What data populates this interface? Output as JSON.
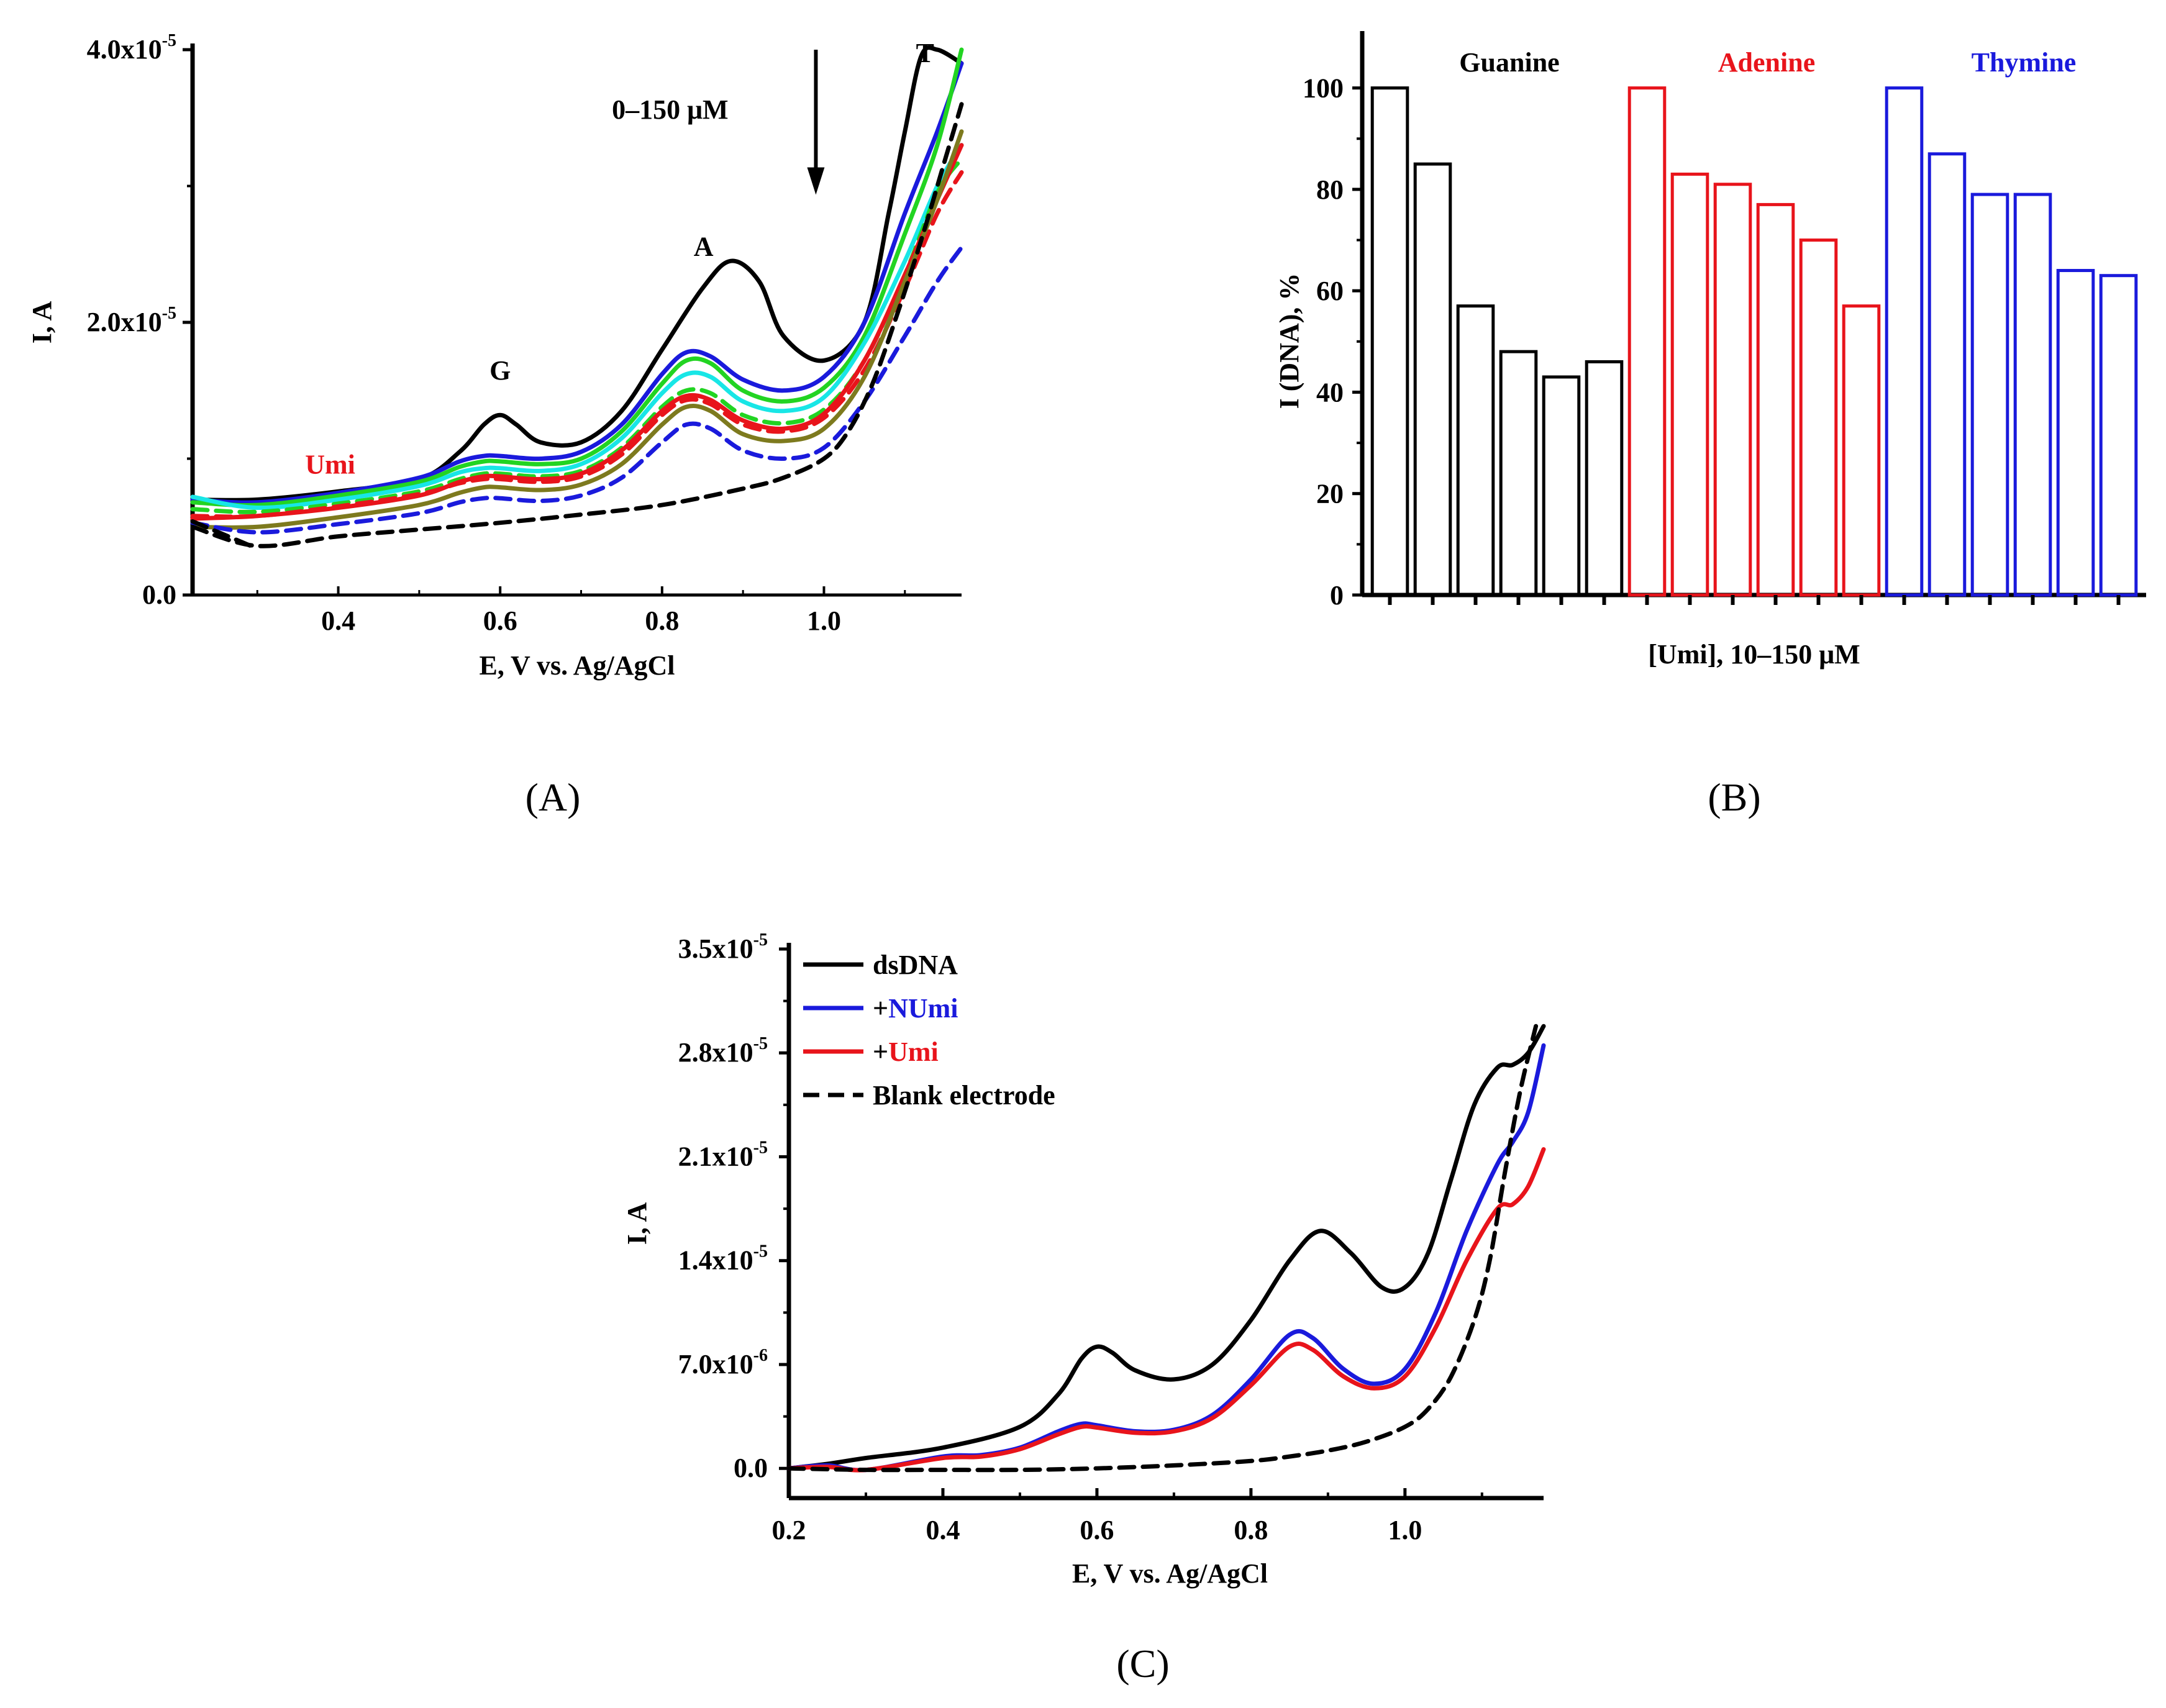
{
  "chart_data": [
    {
      "panel": "A",
      "type": "line",
      "panel_label": "(A)",
      "xlabel": "E, V vs. Ag/AgCl",
      "ylabel": "I, A",
      "xlim": [
        0.22,
        1.17
      ],
      "ylim": [
        0,
        4e-05
      ],
      "x_ticks": [
        0.4,
        0.6,
        0.8,
        1.0
      ],
      "x_tick_labels": [
        "0.4",
        "0.6",
        "0.8",
        "1.0"
      ],
      "y_ticks": [
        0,
        2e-05,
        4e-05
      ],
      "y_tick_labels": [
        {
          "base": "0.0",
          "exp": ""
        },
        {
          "base": "2.0x10",
          "exp": "-5"
        },
        {
          "base": "4.0x10",
          "exp": "-5"
        }
      ],
      "annotations": {
        "G": {
          "text": "G",
          "x": 0.6,
          "y": 1.5e-05
        },
        "A": {
          "text": "A",
          "x": 0.885,
          "y": 2.68e-05
        },
        "T": {
          "text": "T",
          "x": 1.125,
          "y": 4e-05
        },
        "umi": {
          "text": "Umi",
          "x": 0.39,
          "y": 9.6e-06,
          "color": "#e8141b"
        },
        "conc": {
          "text": "0–150 μM",
          "x": 0.81,
          "y": 3.55e-05
        },
        "arrow": {
          "x": 0.99,
          "y_from": 4e-05,
          "y_to": 3e-05
        }
      },
      "series": [
        {
          "name": "dsDNA",
          "color": "#000000",
          "dash": false,
          "x": [
            0.22,
            0.3,
            0.4,
            0.5,
            0.55,
            0.58,
            0.6,
            0.62,
            0.65,
            0.7,
            0.75,
            0.8,
            0.85,
            0.885,
            0.92,
            0.95,
            1.0,
            1.05,
            1.08,
            1.1,
            1.12,
            1.14,
            1.17
          ],
          "y": [
            7e-06,
            7e-06,
            7.6e-06,
            8.5e-06,
            1.05e-05,
            1.25e-05,
            1.32e-05,
            1.25e-05,
            1.12e-05,
            1.12e-05,
            1.35e-05,
            1.8e-05,
            2.25e-05,
            2.45e-05,
            2.3e-05,
            1.9e-05,
            1.72e-05,
            2e-05,
            2.8e-05,
            3.4e-05,
            3.95e-05,
            4e-05,
            3.9e-05
          ]
        },
        {
          "name": "blue",
          "color": "#1a1adc",
          "dash": false,
          "x": [
            0.22,
            0.3,
            0.4,
            0.5,
            0.55,
            0.58,
            0.6,
            0.65,
            0.7,
            0.75,
            0.8,
            0.83,
            0.86,
            0.9,
            0.95,
            1.0,
            1.05,
            1.1,
            1.14,
            1.17
          ],
          "y": [
            7e-06,
            6.8e-06,
            7.5e-06,
            8.6e-06,
            9.8e-06,
            1.02e-05,
            1.02e-05,
            1e-05,
            1.05e-05,
            1.25e-05,
            1.62e-05,
            1.78e-05,
            1.75e-05,
            1.58e-05,
            1.5e-05,
            1.6e-05,
            2e-05,
            2.8e-05,
            3.4e-05,
            3.9e-05
          ]
        },
        {
          "name": "green",
          "color": "#22d422",
          "dash": false,
          "x": [
            0.22,
            0.3,
            0.4,
            0.5,
            0.55,
            0.58,
            0.6,
            0.65,
            0.7,
            0.75,
            0.8,
            0.83,
            0.86,
            0.9,
            0.95,
            1.0,
            1.05,
            1.1,
            1.14,
            1.17
          ],
          "y": [
            6.8e-06,
            6.6e-06,
            7.3e-06,
            8.3e-06,
            9.4e-06,
            9.8e-06,
            9.8e-06,
            9.6e-06,
            1e-05,
            1.2e-05,
            1.55e-05,
            1.72e-05,
            1.7e-05,
            1.5e-05,
            1.42e-05,
            1.52e-05,
            1.9e-05,
            2.65e-05,
            3.3e-05,
            4e-05
          ]
        },
        {
          "name": "cyan",
          "color": "#18e6e6",
          "dash": false,
          "x": [
            0.22,
            0.3,
            0.4,
            0.5,
            0.55,
            0.58,
            0.6,
            0.65,
            0.7,
            0.75,
            0.8,
            0.83,
            0.86,
            0.9,
            0.95,
            1.0,
            1.05,
            1.1,
            1.14,
            1.17
          ],
          "y": [
            7.2e-06,
            6.4e-06,
            7e-06,
            8e-06,
            9e-06,
            9.3e-06,
            9.3e-06,
            9.1e-06,
            9.6e-06,
            1.15e-05,
            1.48e-05,
            1.62e-05,
            1.6e-05,
            1.42e-05,
            1.35e-05,
            1.45e-05,
            1.85e-05,
            2.45e-05,
            3e-05,
            3.3e-05
          ]
        },
        {
          "name": "green-dashed",
          "color": "#22d422",
          "dash": true,
          "x": [
            0.22,
            0.3,
            0.4,
            0.5,
            0.55,
            0.58,
            0.6,
            0.65,
            0.7,
            0.75,
            0.8,
            0.83,
            0.86,
            0.9,
            0.95,
            1.0,
            1.05,
            1.1,
            1.14,
            1.17
          ],
          "y": [
            6.3e-06,
            6.1e-06,
            6.7e-06,
            7.6e-06,
            8.5e-06,
            8.9e-06,
            8.9e-06,
            8.7e-06,
            9.1e-06,
            1.08e-05,
            1.38e-05,
            1.5e-05,
            1.48e-05,
            1.32e-05,
            1.26e-05,
            1.36e-05,
            1.72e-05,
            2.35e-05,
            2.95e-05,
            3.2e-05
          ]
        },
        {
          "name": "red-dashed",
          "color": "#e8141b",
          "dash": true,
          "x": [
            0.22,
            0.3,
            0.4,
            0.5,
            0.55,
            0.58,
            0.6,
            0.65,
            0.7,
            0.75,
            0.8,
            0.83,
            0.86,
            0.9,
            0.95,
            1.0,
            1.05,
            1.1,
            1.14,
            1.17
          ],
          "y": [
            5.8e-06,
            5.8e-06,
            6.5e-06,
            7.4e-06,
            8.2e-06,
            8.5e-06,
            8.5e-06,
            8.3e-06,
            8.7e-06,
            1.03e-05,
            1.32e-05,
            1.43e-05,
            1.4e-05,
            1.25e-05,
            1.2e-05,
            1.3e-05,
            1.65e-05,
            2.25e-05,
            2.8e-05,
            3.1e-05
          ]
        },
        {
          "name": "red",
          "color": "#e8141b",
          "dash": false,
          "x": [
            0.22,
            0.3,
            0.4,
            0.5,
            0.55,
            0.58,
            0.6,
            0.65,
            0.7,
            0.75,
            0.8,
            0.83,
            0.86,
            0.9,
            0.95,
            1.0,
            1.05,
            1.1,
            1.14,
            1.17
          ],
          "y": [
            5.6e-06,
            5.8e-06,
            6.4e-06,
            7.3e-06,
            8.3e-06,
            8.7e-06,
            8.7e-06,
            8.5e-06,
            8.9e-06,
            1.06e-05,
            1.35e-05,
            1.46e-05,
            1.43e-05,
            1.28e-05,
            1.22e-05,
            1.33e-05,
            1.72e-05,
            2.35e-05,
            2.9e-05,
            3.3e-05
          ]
        },
        {
          "name": "olive",
          "color": "#7d7a1e",
          "dash": false,
          "x": [
            0.22,
            0.3,
            0.4,
            0.5,
            0.55,
            0.58,
            0.6,
            0.65,
            0.7,
            0.75,
            0.8,
            0.83,
            0.86,
            0.9,
            0.95,
            1.0,
            1.05,
            1.1,
            1.14,
            1.17
          ],
          "y": [
            5e-06,
            5e-06,
            5.7e-06,
            6.6e-06,
            7.5e-06,
            7.9e-06,
            7.9e-06,
            7.7e-06,
            8.1e-06,
            9.6e-06,
            1.25e-05,
            1.38e-05,
            1.35e-05,
            1.18e-05,
            1.13e-05,
            1.22e-05,
            1.6e-05,
            2.3e-05,
            2.9e-05,
            3.4e-05
          ]
        },
        {
          "name": "blue-dashed",
          "color": "#1a1adc",
          "dash": true,
          "x": [
            0.22,
            0.3,
            0.4,
            0.5,
            0.55,
            0.58,
            0.6,
            0.65,
            0.7,
            0.75,
            0.8,
            0.83,
            0.86,
            0.9,
            0.95,
            1.0,
            1.05,
            1.1,
            1.14,
            1.17
          ],
          "y": [
            5.3e-06,
            4.6e-06,
            5.2e-06,
            6e-06,
            6.8e-06,
            7.1e-06,
            7.1e-06,
            6.9e-06,
            7.3e-06,
            8.6e-06,
            1.12e-05,
            1.25e-05,
            1.22e-05,
            1.06e-05,
            1e-05,
            1.08e-05,
            1.42e-05,
            1.9e-05,
            2.3e-05,
            2.55e-05
          ]
        },
        {
          "name": "blank",
          "color": "#000000",
          "dash": true,
          "x": [
            0.22,
            0.3,
            0.4,
            0.5,
            0.6,
            0.7,
            0.8,
            0.9,
            0.95,
            1.0,
            1.03,
            1.06,
            1.09,
            1.12,
            1.15,
            1.17
          ],
          "y": [
            5e-06,
            3.6e-06,
            4.3e-06,
            4.8e-06,
            5.3e-06,
            5.9e-06,
            6.6e-06,
            7.8e-06,
            8.6e-06,
            1e-05,
            1.2e-05,
            1.55e-05,
            2.05e-05,
            2.6e-05,
            3.2e-05,
            3.6e-05
          ]
        },
        {
          "name": "blank-short",
          "color": "#000000",
          "dash": true,
          "x": [
            0.22,
            0.26,
            0.3
          ],
          "y": [
            5.4e-06,
            4.4e-06,
            3.4e-06
          ]
        }
      ]
    },
    {
      "panel": "B",
      "type": "bar",
      "panel_label": "(B)",
      "xlabel": "[Umi],  10–150 μM",
      "ylabel": "I (DNA), %",
      "ylim": [
        0,
        110
      ],
      "y_ticks": [
        0,
        20,
        40,
        60,
        80,
        100
      ],
      "y_tick_labels": [
        "0",
        "20",
        "40",
        "60",
        "80",
        "100"
      ],
      "groups": [
        {
          "name": "Guanine",
          "color": "#000000",
          "values": [
            100,
            85,
            57,
            48,
            43,
            46
          ]
        },
        {
          "name": "Adenine",
          "color": "#e8141b",
          "values": [
            100,
            83,
            81,
            77,
            70,
            57
          ]
        },
        {
          "name": "Thymine",
          "color": "#1a1adc",
          "values": [
            100,
            87,
            79,
            79,
            64,
            63
          ]
        }
      ]
    },
    {
      "panel": "C",
      "type": "line",
      "panel_label": "(C)",
      "xlabel": "E, V vs. Ag/AgCl",
      "ylabel": "I, A",
      "xlim": [
        0.2,
        1.18
      ],
      "ylim": [
        -2e-06,
        3.5e-05
      ],
      "x_ticks": [
        0.2,
        0.4,
        0.6,
        0.8,
        1.0
      ],
      "x_tick_labels": [
        "0.2",
        "0.4",
        "0.6",
        "0.8",
        "1.0"
      ],
      "y_ticks": [
        0,
        7e-06,
        1.4e-05,
        2.1e-05,
        2.8e-05,
        3.5e-05
      ],
      "y_tick_labels": [
        {
          "base": "0.0",
          "exp": ""
        },
        {
          "base": "7.0x10",
          "exp": "-6"
        },
        {
          "base": "1.4x10",
          "exp": "-5"
        },
        {
          "base": "2.1x10",
          "exp": "-5"
        },
        {
          "base": "2.8x10",
          "exp": "-5"
        },
        {
          "base": "3.5x10",
          "exp": "-5"
        }
      ],
      "legend": [
        {
          "prefix": "",
          "text": "dsDNA",
          "text_color": "#000000",
          "line_color": "#000000",
          "dash": false
        },
        {
          "prefix": "+",
          "text": "NUmi",
          "text_color": "#1a1adc",
          "line_color": "#1a1adc",
          "dash": false
        },
        {
          "prefix": "+",
          "text": "Umi",
          "text_color": "#e8141b",
          "line_color": "#e8141b",
          "dash": false
        },
        {
          "prefix": "",
          "text": "Blank electrode",
          "text_color": "#000000",
          "line_color": "#000000",
          "dash": true
        }
      ],
      "series": [
        {
          "name": "dsDNA",
          "color": "#000000",
          "dash": false,
          "x": [
            0.2,
            0.25,
            0.3,
            0.4,
            0.5,
            0.55,
            0.58,
            0.6,
            0.62,
            0.65,
            0.7,
            0.75,
            0.8,
            0.85,
            0.89,
            0.93,
            0.97,
            1.0,
            1.03,
            1.06,
            1.09,
            1.12,
            1.14,
            1.16,
            1.18
          ],
          "y": [
            0,
            3e-07,
            7e-07,
            1.4e-06,
            2.8e-06,
            5e-06,
            7.4e-06,
            8.2e-06,
            7.8e-06,
            6.6e-06,
            6e-06,
            7e-06,
            1e-05,
            1.4e-05,
            1.6e-05,
            1.45e-05,
            1.22e-05,
            1.22e-05,
            1.45e-05,
            1.95e-05,
            2.45e-05,
            2.7e-05,
            2.72e-05,
            2.8e-05,
            2.98e-05
          ]
        },
        {
          "name": "+NUmi",
          "color": "#1a1adc",
          "dash": false,
          "x": [
            0.2,
            0.25,
            0.3,
            0.4,
            0.45,
            0.5,
            0.55,
            0.58,
            0.6,
            0.65,
            0.7,
            0.75,
            0.8,
            0.85,
            0.88,
            0.92,
            0.96,
            1.0,
            1.04,
            1.08,
            1.12,
            1.14,
            1.16,
            1.18
          ],
          "y": [
            0,
            2e-07,
            -1e-07,
            8e-07,
            9e-07,
            1.4e-06,
            2.5e-06,
            3e-06,
            2.9e-06,
            2.5e-06,
            2.6e-06,
            3.6e-06,
            6e-06,
            9e-06,
            8.8e-06,
            6.7e-06,
            5.7e-06,
            6.7e-06,
            1.05e-05,
            1.6e-05,
            2.05e-05,
            2.2e-05,
            2.4e-05,
            2.85e-05
          ]
        },
        {
          "name": "+Umi",
          "color": "#e8141b",
          "dash": false,
          "x": [
            0.2,
            0.25,
            0.3,
            0.4,
            0.45,
            0.5,
            0.55,
            0.58,
            0.6,
            0.65,
            0.7,
            0.75,
            0.8,
            0.85,
            0.88,
            0.92,
            0.96,
            1.0,
            1.04,
            1.08,
            1.12,
            1.14,
            1.16,
            1.18
          ],
          "y": [
            0,
            1e-07,
            -1e-07,
            7e-07,
            8e-07,
            1.3e-06,
            2.3e-06,
            2.8e-06,
            2.75e-06,
            2.4e-06,
            2.5e-06,
            3.4e-06,
            5.6e-06,
            8.2e-06,
            8e-06,
            6.2e-06,
            5.4e-06,
            6.2e-06,
            9.5e-06,
            1.4e-05,
            1.75e-05,
            1.78e-05,
            1.9e-05,
            2.15e-05
          ]
        },
        {
          "name": "Blank electrode",
          "color": "#000000",
          "dash": true,
          "x": [
            0.2,
            0.3,
            0.4,
            0.5,
            0.6,
            0.7,
            0.8,
            0.85,
            0.9,
            0.95,
            1.0,
            1.03,
            1.06,
            1.09,
            1.11,
            1.13,
            1.15,
            1.17
          ],
          "y": [
            0,
            -1e-07,
            -1e-07,
            -1e-07,
            0,
            2e-07,
            5e-07,
            8e-07,
            1.2e-06,
            1.8e-06,
            2.8e-06,
            4e-06,
            6.2e-06,
            1e-05,
            1.4e-05,
            2e-05,
            2.55e-05,
            2.98e-05
          ]
        }
      ]
    }
  ]
}
